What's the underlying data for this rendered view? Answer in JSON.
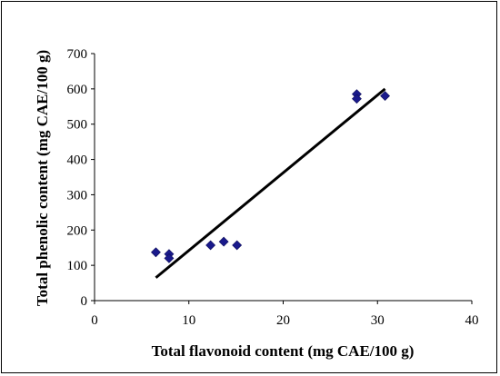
{
  "chart_data": {
    "type": "scatter",
    "title": "",
    "xlabel": "Total flavonoid content (mg CAE/100 g)",
    "ylabel": "Total phenolic content (mg CAE/100 g)",
    "xlim": [
      0,
      40
    ],
    "ylim": [
      0,
      700
    ],
    "xticks": [
      "0",
      "10",
      "20",
      "30",
      "40"
    ],
    "yticks": [
      "0",
      "100",
      "200",
      "300",
      "400",
      "500",
      "600",
      "700"
    ],
    "grid": false,
    "legend": "none",
    "series": [
      {
        "marker": "diamond",
        "color": "#1a1a8c",
        "points": [
          {
            "x": 6.5,
            "y": 137
          },
          {
            "x": 7.9,
            "y": 132
          },
          {
            "x": 7.9,
            "y": 120
          },
          {
            "x": 12.3,
            "y": 157
          },
          {
            "x": 13.7,
            "y": 167
          },
          {
            "x": 15.1,
            "y": 157
          },
          {
            "x": 27.8,
            "y": 585
          },
          {
            "x": 27.8,
            "y": 572
          },
          {
            "x": 30.8,
            "y": 580
          }
        ]
      }
    ],
    "trendline": {
      "color": "#000000",
      "from": {
        "x": 6.5,
        "y": 65
      },
      "to": {
        "x": 30.8,
        "y": 600
      }
    }
  }
}
